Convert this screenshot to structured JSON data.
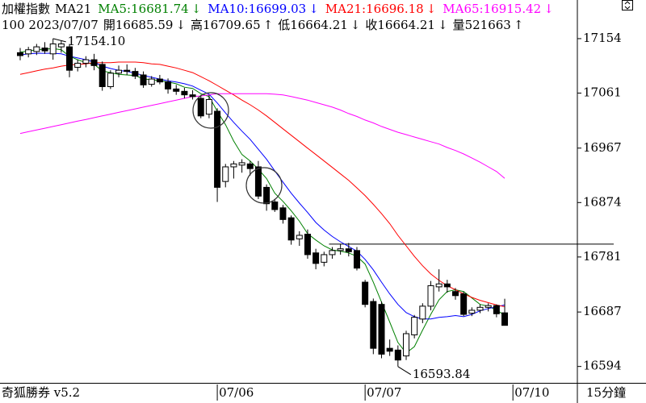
{
  "chart_data": {
    "type": "candlestick",
    "title": "加權指數",
    "indicator": "MA21",
    "separator": ":",
    "categories": [
      null,
      null,
      null,
      null,
      null,
      null,
      null,
      null,
      null,
      null,
      null,
      null,
      null,
      null,
      null,
      null,
      null,
      null,
      null,
      null,
      null,
      null,
      null,
      null,
      "07/06",
      null,
      null,
      null,
      null,
      null,
      null,
      null,
      null,
      null,
      null,
      null,
      null,
      null,
      null,
      null,
      null,
      null,
      "07/07",
      null,
      null,
      null,
      null,
      null,
      null,
      null,
      null,
      null,
      null,
      null,
      null,
      null,
      null,
      null,
      null,
      null,
      "07/10"
    ],
    "open": [
      17130,
      17128,
      17132,
      17138,
      17128,
      17140,
      17140,
      17105,
      17112,
      17118,
      17110,
      17072,
      17095,
      17100,
      17098,
      17092,
      17076,
      17085,
      17080,
      17068,
      17064,
      17058,
      17052,
      17025,
      17030,
      16910,
      16935,
      16938,
      16940,
      16935,
      16900,
      16875,
      16865,
      16848,
      16812,
      16820,
      16788,
      16772,
      16785,
      16792,
      16795,
      16792,
      16738,
      16705,
      16700,
      16625,
      16622,
      16612,
      16648,
      16675,
      16697,
      16730,
      16735,
      16722,
      16718,
      16685,
      16690,
      16695,
      16698,
      16685.59,
      null
    ],
    "high": [
      17138,
      17140,
      17145,
      17148,
      17154.1,
      17150,
      17145,
      17118,
      17124,
      17128,
      17115,
      17100,
      17108,
      17110,
      17104,
      17098,
      17090,
      17092,
      17086,
      17075,
      17070,
      17066,
      17058,
      17058,
      17035,
      16940,
      16945,
      16948,
      16945,
      16945,
      16905,
      16880,
      16870,
      16852,
      16825,
      16828,
      16795,
      16790,
      16798,
      16803,
      16805,
      16798,
      16742,
      16710,
      16705,
      16640,
      16630,
      16655,
      16682,
      16702,
      16740,
      16760,
      16742,
      16728,
      16722,
      16695,
      16700,
      16702,
      16700,
      16709.65,
      null
    ],
    "low": [
      17117,
      17122,
      17126,
      17128,
      17118,
      17130,
      17088,
      17098,
      17105,
      17100,
      17065,
      17068,
      17088,
      17092,
      17085,
      17070,
      17072,
      17076,
      17060,
      17058,
      17052,
      17050,
      17018,
      17018,
      16875,
      16900,
      16915,
      16925,
      16920,
      16880,
      16860,
      16858,
      16838,
      16802,
      16800,
      16778,
      16760,
      16765,
      16778,
      16785,
      16782,
      16758,
      16695,
      16615,
      16608,
      16612,
      16593.84,
      16605,
      16642,
      16668,
      16690,
      16722,
      16720,
      16708,
      16680,
      16680,
      16685,
      16688,
      16678,
      16664.21,
      null
    ],
    "close": [
      17125,
      17135,
      17140,
      17133,
      17145,
      17145,
      17100,
      17112,
      17118,
      17108,
      17072,
      17095,
      17100,
      17098,
      17090,
      17075,
      17085,
      17080,
      17068,
      17064,
      17058,
      17055,
      17022,
      17050,
      16900,
      16935,
      16940,
      16942,
      16932,
      16885,
      16872,
      16862,
      16845,
      16810,
      16818,
      16785,
      16770,
      16785,
      16792,
      16795,
      16790,
      16762,
      16700,
      16625,
      16615,
      16620,
      16605,
      16650,
      16678,
      16697,
      16732,
      16735,
      16730,
      16715,
      16683,
      16690,
      16695,
      16698,
      16684,
      16664.21,
      null
    ],
    "volume": 521663,
    "up_color": "#ffffff",
    "down_color": "#000000",
    "edge_color": "#000000",
    "series": [
      {
        "name": "MA5",
        "color": "#008000",
        "arrow": "↓",
        "values": [
          17131,
          17133,
          17135,
          17136,
          17137,
          17135,
          17124,
          17118,
          17113,
          17110,
          17099,
          17096,
          17093,
          17092,
          17091,
          17085,
          17084,
          17082,
          17080,
          17077,
          17071,
          17069,
          17060,
          17055,
          17030,
          17007,
          16979,
          16956,
          16945,
          16931,
          16915,
          16890,
          16876,
          16860,
          16842,
          16821,
          16810,
          16800,
          16793,
          16791,
          16788,
          16782,
          16769,
          16738,
          16704,
          16670,
          16635,
          16617,
          16628,
          16656,
          16683,
          16708,
          16722,
          16725,
          16722,
          16711,
          16700,
          16697,
          16690,
          16681.74,
          null
        ]
      },
      {
        "name": "MA10",
        "color": "#0000ff",
        "arrow": "↓",
        "values": [
          17126,
          17128,
          17129,
          17129,
          17129,
          17128,
          17124,
          17121,
          17118,
          17114,
          17107,
          17103,
          17100,
          17098,
          17095,
          17091,
          17088,
          17085,
          17082,
          17080,
          17077,
          17073,
          17066,
          17059,
          17044,
          17027,
          17011,
          16996,
          16982,
          16965,
          16948,
          16928,
          16909,
          16890,
          16873,
          16857,
          16840,
          16827,
          16816,
          16807,
          16799,
          16791,
          16777,
          16759,
          16738,
          16718,
          16700,
          16686,
          16679,
          16675,
          16675,
          16678,
          16679,
          16681,
          16679,
          16683,
          16689,
          16693,
          16696,
          16699.03,
          null
        ]
      },
      {
        "name": "MA21",
        "color": "#ff0000",
        "arrow": "↓",
        "values": [
          17093,
          17096,
          17099,
          17102,
          17104,
          17107,
          17109,
          17110,
          17111,
          17113,
          17113,
          17113,
          17114,
          17114,
          17114,
          17113,
          17111,
          17110,
          17107,
          17104,
          17100,
          17096,
          17089,
          17082,
          17074,
          17066,
          17058,
          17049,
          17041,
          17032,
          17022,
          17011,
          17000,
          16989,
          16978,
          16967,
          16956,
          16945,
          16934,
          16923,
          16912,
          16899,
          16886,
          16871,
          16855,
          16838,
          16818,
          16800,
          16782,
          16766,
          16752,
          16741,
          16732,
          16725,
          16718,
          16712,
          16707,
          16703,
          16699,
          16696.18,
          null
        ]
      },
      {
        "name": "MA65",
        "color": "#ff00ff",
        "arrow": "↓",
        "values": [
          16992,
          16995,
          16998,
          17001,
          17004,
          17007,
          17010,
          17013,
          17016,
          17019,
          17022,
          17025,
          17028,
          17031,
          17034,
          17037,
          17040,
          17043,
          17046,
          17049,
          17052,
          17055,
          17056,
          17058,
          17060,
          17060,
          17060,
          17060,
          17060,
          17060,
          17060,
          17059,
          17058,
          17055,
          17052,
          17049,
          17045,
          17041,
          17037,
          17032,
          17026,
          17021,
          17015,
          17010,
          17004,
          16999,
          16994,
          16990,
          16986,
          16982,
          16978,
          16974,
          16968,
          16963,
          16957,
          16950,
          16943,
          16935,
          16927,
          16915.42,
          null
        ]
      }
    ],
    "info": {
      "prefix": "100 2023/07/07",
      "labels": [
        "開",
        "高",
        "低",
        "收",
        "量"
      ],
      "arrows": [
        "↓",
        "↑",
        "↓",
        "↓",
        "↑"
      ]
    },
    "annotations": [
      {
        "text": "17154.10",
        "at": "high"
      },
      {
        "text": "16593.84",
        "at": "low"
      }
    ],
    "reference_line": 16803,
    "ylim": [
      16566,
      17220
    ],
    "yticks": [
      16594,
      16687,
      16781,
      16874,
      16967,
      17061,
      17154
    ],
    "footer_left": "奇狐勝券 v5.2",
    "footer_right": "15分鐘"
  }
}
